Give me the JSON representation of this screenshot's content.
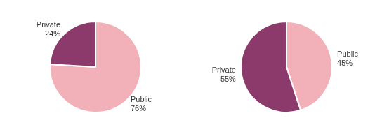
{
  "chart_data": [
    {
      "type": "pie",
      "values": [
        76,
        24
      ],
      "value_labels": [
        "Public\n76%",
        "Private\n24%"
      ],
      "colors": [
        "#f2b0b8",
        "#8b3a6b"
      ],
      "data_labels": true
    },
    {
      "type": "pie",
      "values": [
        45,
        55
      ],
      "value_labels": [
        "Public\n45%",
        "Private\n55%"
      ],
      "colors": [
        "#f2b0b8",
        "#8b3a6b"
      ],
      "data_labels": true
    }
  ]
}
